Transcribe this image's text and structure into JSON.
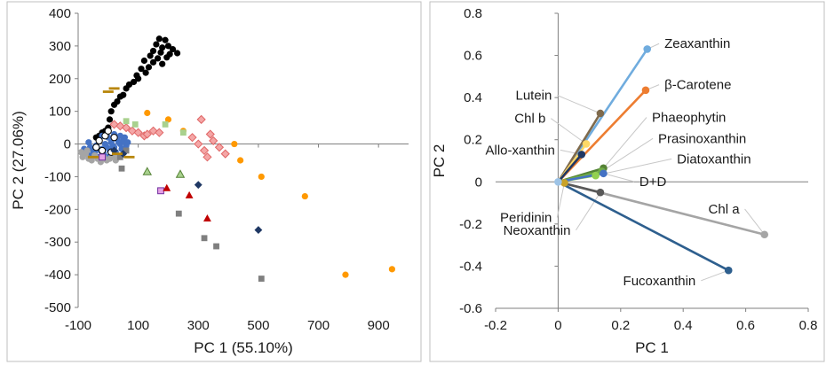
{
  "chart_data": [
    {
      "type": "scatter",
      "xlabel": "PC 1 (55.10%)",
      "ylabel": "PC 2 (27.06%)",
      "xlim": [
        -100,
        1000
      ],
      "ylim": [
        -500,
        400
      ],
      "xticks": [
        "-100",
        "100",
        "300",
        "500",
        "700",
        "900"
      ],
      "yticks": [
        "400",
        "300",
        "200",
        "100",
        "0",
        "-100",
        "-200",
        "-300",
        "-400",
        "-500"
      ],
      "grid": false,
      "series": [
        {
          "marker": "circle",
          "color": "#000000",
          "points": [
            [
              170,
              322
            ],
            [
              190,
              318
            ],
            [
              160,
              305
            ],
            [
              200,
              300
            ],
            [
              180,
              295
            ],
            [
              215,
              290
            ],
            [
              150,
              285
            ],
            [
              175,
              280
            ],
            [
              205,
              275
            ],
            [
              230,
              278
            ],
            [
              140,
              270
            ],
            [
              165,
              262
            ],
            [
              195,
              265
            ],
            [
              120,
              255
            ],
            [
              150,
              250
            ],
            [
              180,
              245
            ],
            [
              135,
              235
            ],
            [
              110,
              230
            ],
            [
              125,
              218
            ],
            [
              95,
              210
            ],
            [
              100,
              200
            ],
            [
              85,
              190
            ],
            [
              70,
              182
            ],
            [
              60,
              170
            ],
            [
              50,
              150
            ],
            [
              40,
              145
            ],
            [
              30,
              130
            ],
            [
              20,
              120
            ],
            [
              10,
              100
            ],
            [
              5,
              75
            ],
            [
              0,
              50
            ],
            [
              -10,
              40
            ],
            [
              -20,
              35
            ],
            [
              -30,
              25
            ],
            [
              -40,
              20
            ]
          ]
        },
        {
          "marker": "circle",
          "color": "#4472c4",
          "points": [
            [
              -60,
              -10
            ],
            [
              -50,
              -20
            ],
            [
              -40,
              -5
            ],
            [
              -30,
              10
            ],
            [
              -20,
              -15
            ],
            [
              -10,
              0
            ],
            [
              0,
              20
            ],
            [
              10,
              5
            ],
            [
              20,
              -10
            ],
            [
              30,
              15
            ],
            [
              40,
              0
            ],
            [
              50,
              10
            ],
            [
              60,
              -5
            ],
            [
              -70,
              -30
            ],
            [
              -55,
              -35
            ],
            [
              -45,
              -25
            ],
            [
              -35,
              -40
            ],
            [
              -25,
              -20
            ],
            [
              -15,
              -30
            ],
            [
              -5,
              -10
            ],
            [
              5,
              -20
            ],
            [
              15,
              -5
            ],
            [
              25,
              -25
            ],
            [
              35,
              5
            ],
            [
              45,
              -15
            ],
            [
              55,
              20
            ],
            [
              65,
              5
            ],
            [
              -80,
              -15
            ],
            [
              -65,
              5
            ],
            [
              -20,
              25
            ],
            [
              0,
              -40
            ],
            [
              20,
              30
            ],
            [
              40,
              25
            ]
          ]
        },
        {
          "marker": "circle",
          "color": "#a5a5a5",
          "points": [
            [
              -85,
              -40
            ],
            [
              -75,
              -30
            ],
            [
              -65,
              -45
            ],
            [
              -55,
              -50
            ],
            [
              -45,
              -35
            ],
            [
              -35,
              -45
            ],
            [
              -25,
              -55
            ],
            [
              -15,
              -40
            ],
            [
              -5,
              -50
            ],
            [
              5,
              -45
            ],
            [
              15,
              -35
            ],
            [
              25,
              -50
            ],
            [
              35,
              -40
            ],
            [
              -90,
              -25
            ],
            [
              -70,
              -20
            ]
          ]
        },
        {
          "marker": "circle",
          "color": "#ffffff",
          "stroke": "#000000",
          "points": [
            [
              -30,
              10
            ],
            [
              -10,
              25
            ],
            [
              10,
              -25
            ],
            [
              20,
              20
            ],
            [
              -20,
              -20
            ],
            [
              0,
              40
            ],
            [
              -40,
              -10
            ]
          ]
        },
        {
          "marker": "circle",
          "color": "#ff9900",
          "points": [
            [
              130,
              95
            ],
            [
              200,
              75
            ],
            [
              250,
              40
            ],
            [
              420,
              0
            ],
            [
              440,
              -50
            ],
            [
              510,
              -100
            ],
            [
              655,
              -160
            ],
            [
              790,
              -400
            ],
            [
              945,
              -383
            ]
          ]
        },
        {
          "marker": "diamond",
          "color": "#f4a6a6",
          "stroke": "#e06666",
          "points": [
            [
              20,
              60
            ],
            [
              40,
              55
            ],
            [
              60,
              50
            ],
            [
              80,
              40
            ],
            [
              100,
              35
            ],
            [
              120,
              25
            ],
            [
              130,
              30
            ],
            [
              150,
              40
            ],
            [
              170,
              35
            ],
            [
              280,
              20
            ],
            [
              300,
              0
            ],
            [
              310,
              75
            ],
            [
              320,
              -20
            ],
            [
              330,
              -40
            ],
            [
              340,
              30
            ],
            [
              350,
              10
            ],
            [
              370,
              -10
            ],
            [
              390,
              -30
            ]
          ]
        },
        {
          "marker": "square",
          "color": "#a9d18e",
          "points": [
            [
              60,
              70
            ],
            [
              90,
              60
            ],
            [
              190,
              60
            ],
            [
              250,
              35
            ]
          ]
        },
        {
          "marker": "square",
          "color": "#7f7f7f",
          "points": [
            [
              40,
              -40
            ],
            [
              45,
              -75
            ],
            [
              60,
              -20
            ],
            [
              235,
              -213
            ],
            [
              320,
              -288
            ],
            [
              360,
              -313
            ],
            [
              510,
              -412
            ]
          ]
        },
        {
          "marker": "square",
          "color": "#e4a0e4",
          "stroke": "#7030a0",
          "points": [
            [
              -20,
              -40
            ],
            [
              175,
              -143
            ]
          ]
        },
        {
          "marker": "triangle",
          "color": "#a9d18e",
          "stroke": "#548235",
          "points": [
            [
              130,
              -85
            ],
            [
              240,
              -93
            ]
          ]
        },
        {
          "marker": "triangle",
          "color": "#c00000",
          "points": [
            [
              195,
              -135
            ],
            [
              270,
              -157
            ],
            [
              330,
              -228
            ]
          ]
        },
        {
          "marker": "diamond",
          "color": "#1f3864",
          "points": [
            [
              20,
              -20
            ],
            [
              50,
              -30
            ],
            [
              300,
              -125
            ],
            [
              500,
              -263
            ]
          ]
        },
        {
          "marker": "dash",
          "color": "#b8860b",
          "points": [
            [
              0,
              160
            ],
            [
              20,
              170
            ],
            [
              30,
              -30
            ],
            [
              70,
              -40
            ],
            [
              -50,
              -40
            ]
          ]
        }
      ]
    },
    {
      "type": "biplot",
      "xlabel": "PC 1",
      "ylabel": "PC 2",
      "xlim": [
        -0.2,
        0.8
      ],
      "ylim": [
        -0.6,
        0.8
      ],
      "xticks": [
        "-0.2",
        "0",
        "0.2",
        "0.4",
        "0.6",
        "0.8"
      ],
      "yticks": [
        "0.8",
        "0.6",
        "0.4",
        "0.2",
        "0",
        "-0.2",
        "-0.4",
        "-0.6"
      ],
      "grid": false,
      "vectors": [
        {
          "name": "Zeaxanthin",
          "x": 0.285,
          "y": 0.63,
          "color": "#70acde",
          "label_at": [
            0.34,
            0.635
          ]
        },
        {
          "name": "β-Carotene",
          "x": 0.28,
          "y": 0.435,
          "color": "#ed7d31",
          "label_at": [
            0.34,
            0.44
          ]
        },
        {
          "name": "Lutein",
          "x": 0.135,
          "y": 0.325,
          "color": "#7f6a4c",
          "label_at": [
            -0.02,
            0.39
          ]
        },
        {
          "name": "Chl b",
          "x": 0.09,
          "y": 0.18,
          "color": "#ffd966",
          "label_at": [
            -0.04,
            0.28
          ]
        },
        {
          "name": "Phaeophytin",
          "x": 0.145,
          "y": 0.065,
          "color": "#548235",
          "label_at": [
            0.3,
            0.285
          ]
        },
        {
          "name": "Prasinoxanthin",
          "x": 0.14,
          "y": 0.05,
          "color": "#70ad47",
          "label_at": [
            0.32,
            0.185
          ]
        },
        {
          "name": "Diatoxanthin",
          "x": 0.12,
          "y": 0.03,
          "color": "#92d050",
          "label_at": [
            0.38,
            0.088
          ]
        },
        {
          "name": "D+D",
          "x": 0.145,
          "y": 0.04,
          "color": "#4472c4",
          "label_at": [
            0.26,
            -0.02
          ]
        },
        {
          "name": "Allo-xanthin",
          "x": 0.075,
          "y": 0.13,
          "color": "#203864",
          "label_at": [
            -0.01,
            0.13
          ]
        },
        {
          "name": "Chl a",
          "x": 0.66,
          "y": -0.25,
          "color": "#a5a5a5",
          "label_at": [
            0.58,
            -0.15
          ]
        },
        {
          "name": "Neoxanthin",
          "x": 0.135,
          "y": -0.05,
          "color": "#595959",
          "label_at": [
            0.04,
            -0.25
          ]
        },
        {
          "name": "Peridinin",
          "x": 0.02,
          "y": -0.005,
          "color": "#c9a227",
          "label_at": [
            -0.02,
            -0.19
          ]
        },
        {
          "name": "Fucoxanthin",
          "x": 0.545,
          "y": -0.42,
          "color": "#2e5f8e",
          "label_at": [
            0.44,
            -0.49
          ]
        }
      ]
    }
  ]
}
